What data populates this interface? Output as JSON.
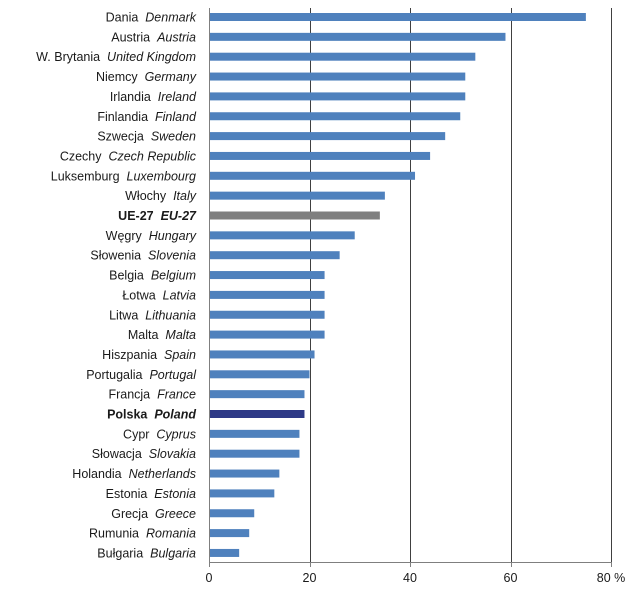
{
  "chart_data": {
    "type": "bar",
    "orientation": "horizontal",
    "categories": [
      {
        "pl": "Dania",
        "en": "Denmark"
      },
      {
        "pl": "Austria",
        "en": "Austria"
      },
      {
        "pl": "W. Brytania",
        "en": "United Kingdom"
      },
      {
        "pl": "Niemcy",
        "en": "Germany"
      },
      {
        "pl": "Irlandia",
        "en": "Ireland"
      },
      {
        "pl": "Finlandia",
        "en": "Finland"
      },
      {
        "pl": "Szwecja",
        "en": "Sweden"
      },
      {
        "pl": "Czechy",
        "en": "Czech Republic"
      },
      {
        "pl": "Luksemburg",
        "en": "Luxembourg"
      },
      {
        "pl": "Włochy",
        "en": "Italy"
      },
      {
        "pl": "UE-27",
        "en": "EU-27",
        "highlight": "eu"
      },
      {
        "pl": "Węgry",
        "en": "Hungary"
      },
      {
        "pl": "Słowenia",
        "en": "Slovenia"
      },
      {
        "pl": "Belgia",
        "en": "Belgium"
      },
      {
        "pl": "Łotwa",
        "en": "Latvia"
      },
      {
        "pl": "Litwa",
        "en": "Lithuania"
      },
      {
        "pl": "Malta",
        "en": "Malta"
      },
      {
        "pl": "Hiszpania",
        "en": "Spain"
      },
      {
        "pl": "Portugalia",
        "en": "Portugal"
      },
      {
        "pl": "Francja",
        "en": "France"
      },
      {
        "pl": "Polska",
        "en": "Poland",
        "highlight": "poland"
      },
      {
        "pl": "Cypr",
        "en": "Cyprus"
      },
      {
        "pl": "Słowacja",
        "en": "Slovakia"
      },
      {
        "pl": "Holandia",
        "en": "Netherlands"
      },
      {
        "pl": "Estonia",
        "en": "Estonia"
      },
      {
        "pl": "Grecja",
        "en": "Greece"
      },
      {
        "pl": "Rumunia",
        "en": "Romania"
      },
      {
        "pl": "Bułgaria",
        "en": "Bulgaria"
      }
    ],
    "values": [
      75,
      59,
      53,
      51,
      51,
      50,
      47,
      44,
      41,
      35,
      34,
      29,
      26,
      23,
      23,
      23,
      23,
      21,
      20,
      19,
      19,
      18,
      18,
      14,
      13,
      9,
      8,
      6
    ],
    "xlim": [
      0,
      80
    ],
    "xticks": [
      0,
      20,
      40,
      60,
      80
    ],
    "xtick_labels": [
      "0",
      "20",
      "40",
      "60",
      "80 %"
    ],
    "grid": true,
    "colors": {
      "default": "#4f81bd",
      "eu": "#7f7f7f",
      "poland": "#2e3a87",
      "grid": "#404040",
      "axis": "#7f7f7f",
      "text": "#1a1a1a"
    }
  }
}
